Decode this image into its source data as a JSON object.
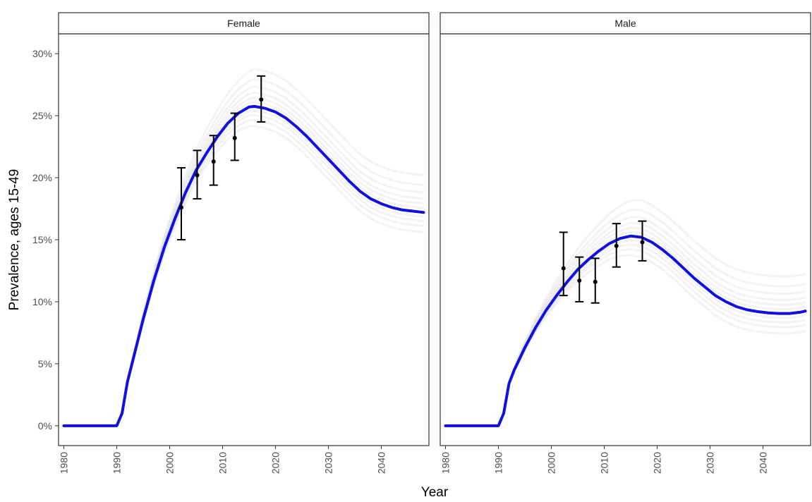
{
  "chart_data": {
    "type": "line",
    "xlabel": "Year",
    "ylabel": "Prevalence, ages 15-49",
    "xlim": [
      1979,
      2049
    ],
    "ylim": [
      -1.6,
      31.6
    ],
    "x_ticks": [
      1980,
      1990,
      2000,
      2010,
      2020,
      2030,
      2040
    ],
    "x_tick_labels": [
      "1980",
      "1990",
      "2000",
      "2010",
      "2020",
      "2030",
      "2040"
    ],
    "y_ticks": [
      0,
      5,
      10,
      15,
      20,
      25,
      30
    ],
    "y_tick_labels": [
      "0%",
      "5%",
      "10%",
      "15%",
      "20%",
      "25%",
      "30%"
    ],
    "grid": false,
    "colors": {
      "fit_line": "#1010e0",
      "uncertainty": "#c8c8c8",
      "survey": "#000000"
    },
    "panels": [
      {
        "title": "Female",
        "fit": {
          "x": [
            1980,
            1990,
            1991,
            1992,
            1993,
            1995,
            1997,
            1999,
            2001,
            2003,
            2005,
            2007,
            2009,
            2011,
            2013,
            2015,
            2016,
            2018,
            2020,
            2022,
            2024,
            2026,
            2028,
            2030,
            2032,
            2034,
            2036,
            2038,
            2040,
            2042,
            2044,
            2046,
            2048
          ],
          "y": [
            0,
            0,
            1.0,
            3.5,
            5.2,
            8.6,
            11.7,
            14.4,
            16.7,
            18.8,
            20.6,
            22.0,
            23.3,
            24.4,
            25.2,
            25.7,
            25.75,
            25.6,
            25.3,
            24.8,
            24.1,
            23.3,
            22.4,
            21.5,
            20.6,
            19.7,
            18.9,
            18.3,
            17.9,
            17.6,
            17.4,
            17.3,
            17.2
          ]
        },
        "surveys": [
          {
            "x": 2002.2,
            "y": 17.6,
            "lo": 15.0,
            "hi": 20.8
          },
          {
            "x": 2005.2,
            "y": 20.2,
            "lo": 18.3,
            "hi": 22.2
          },
          {
            "x": 2008.3,
            "y": 21.3,
            "lo": 19.4,
            "hi": 23.4
          },
          {
            "x": 2012.3,
            "y": 23.2,
            "lo": 21.4,
            "hi": 25.2
          },
          {
            "x": 2017.3,
            "y": 26.3,
            "lo": 24.5,
            "hi": 28.2
          }
        ]
      },
      {
        "title": "Male",
        "fit": {
          "x": [
            1980,
            1990,
            1991,
            1992,
            1993,
            1995,
            1997,
            1999,
            2001,
            2003,
            2005,
            2007,
            2009,
            2011,
            2013,
            2015,
            2017,
            2019,
            2021,
            2023,
            2025,
            2027,
            2029,
            2031,
            2033,
            2035,
            2037,
            2039,
            2041,
            2043,
            2045,
            2047,
            2048
          ],
          "y": [
            0,
            0,
            1.0,
            3.4,
            4.5,
            6.3,
            7.9,
            9.3,
            10.5,
            11.6,
            12.6,
            13.4,
            14.1,
            14.7,
            15.1,
            15.3,
            15.2,
            14.8,
            14.2,
            13.5,
            12.7,
            11.9,
            11.2,
            10.5,
            10.0,
            9.6,
            9.35,
            9.2,
            9.1,
            9.05,
            9.05,
            9.15,
            9.25
          ]
        },
        "surveys": [
          {
            "x": 2002.3,
            "y": 12.7,
            "lo": 10.5,
            "hi": 15.6
          },
          {
            "x": 2005.3,
            "y": 11.7,
            "lo": 10.0,
            "hi": 13.6
          },
          {
            "x": 2008.3,
            "y": 11.6,
            "lo": 9.9,
            "hi": 13.5
          },
          {
            "x": 2012.3,
            "y": 14.5,
            "lo": 12.8,
            "hi": 16.3
          },
          {
            "x": 2017.2,
            "y": 14.8,
            "lo": 13.3,
            "hi": 16.5
          }
        ]
      }
    ]
  }
}
